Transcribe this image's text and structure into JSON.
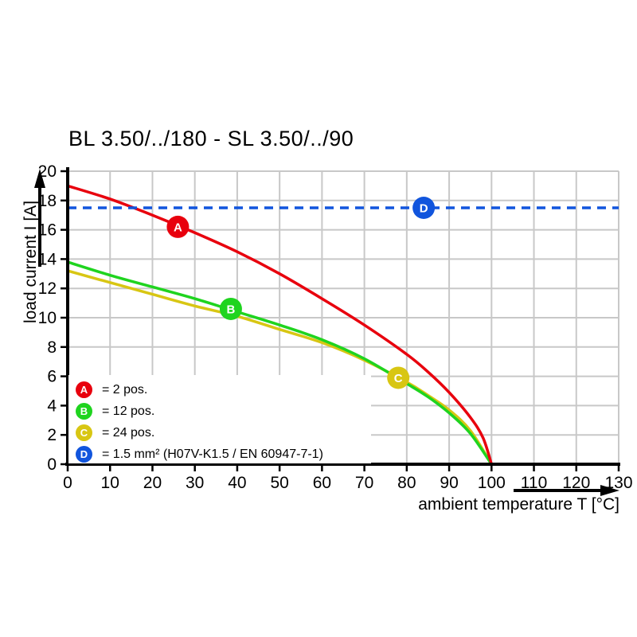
{
  "title": "BL 3.50/../180 - SL 3.50/../90",
  "colors": {
    "red": "#e8000d",
    "green": "#1fd41f",
    "yellow": "#d8c613",
    "blue": "#1155dd",
    "grid": "#c8c8c8",
    "axis": "#000000",
    "text": "#000000",
    "background": "#ffffff"
  },
  "axes": {
    "x": {
      "label": "ambient temperature T [°C]",
      "min": 0,
      "max": 130,
      "ticks": [
        0,
        10,
        20,
        30,
        40,
        50,
        60,
        70,
        80,
        90,
        100,
        110,
        120,
        130
      ]
    },
    "y": {
      "label": "load current I [A]",
      "min": 0,
      "max": 20,
      "ticks": [
        0,
        2,
        4,
        6,
        8,
        10,
        12,
        14,
        16,
        18,
        20
      ]
    }
  },
  "legend": {
    "items": [
      {
        "id": "A",
        "color_key": "red",
        "label": "= 2 pos."
      },
      {
        "id": "B",
        "color_key": "green",
        "label": "= 12 pos."
      },
      {
        "id": "C",
        "color_key": "yellow",
        "label": "= 24 pos."
      },
      {
        "id": "D",
        "color_key": "blue",
        "label": "= 1.5 mm² (H07V-K1.5 / EN 60947-7-1)"
      }
    ]
  },
  "markers": [
    {
      "id": "A",
      "color_key": "red",
      "t": 26,
      "i": 16.2
    },
    {
      "id": "B",
      "color_key": "green",
      "t": 38.5,
      "i": 10.6
    },
    {
      "id": "C",
      "color_key": "yellow",
      "t": 78,
      "i": 5.9
    },
    {
      "id": "D",
      "color_key": "blue",
      "t": 84,
      "i": 17.5
    }
  ],
  "chart_data": {
    "type": "line",
    "title": "BL 3.50/../180 - SL 3.50/../90",
    "xlabel": "ambient temperature T [°C]",
    "ylabel": "load current I [A]",
    "xlim": [
      0,
      130
    ],
    "ylim": [
      0,
      20
    ],
    "grid": true,
    "legend_position": "bottom-left-inside",
    "series": [
      {
        "name": "A = 2 pos.",
        "color_key": "red",
        "style": "solid",
        "points": [
          [
            0,
            19.0
          ],
          [
            10,
            18.1
          ],
          [
            20,
            17.0
          ],
          [
            30,
            15.8
          ],
          [
            40,
            14.5
          ],
          [
            50,
            13.0
          ],
          [
            60,
            11.3
          ],
          [
            70,
            9.5
          ],
          [
            80,
            7.5
          ],
          [
            85,
            6.3
          ],
          [
            90,
            4.9
          ],
          [
            95,
            3.2
          ],
          [
            98,
            1.8
          ],
          [
            100,
            0
          ]
        ]
      },
      {
        "name": "B = 12 pos.",
        "color_key": "green",
        "style": "solid",
        "points": [
          [
            0,
            13.8
          ],
          [
            10,
            12.9
          ],
          [
            20,
            12.1
          ],
          [
            30,
            11.3
          ],
          [
            40,
            10.4
          ],
          [
            50,
            9.5
          ],
          [
            60,
            8.5
          ],
          [
            70,
            7.2
          ],
          [
            80,
            5.5
          ],
          [
            85,
            4.6
          ],
          [
            90,
            3.5
          ],
          [
            95,
            2.1
          ],
          [
            100,
            0
          ]
        ]
      },
      {
        "name": "C = 24 pos.",
        "color_key": "yellow",
        "style": "solid",
        "points": [
          [
            0,
            13.2
          ],
          [
            10,
            12.4
          ],
          [
            20,
            11.6
          ],
          [
            30,
            10.8
          ],
          [
            40,
            10.1
          ],
          [
            50,
            9.2
          ],
          [
            60,
            8.3
          ],
          [
            70,
            7.1
          ],
          [
            80,
            5.6
          ],
          [
            85,
            4.7
          ],
          [
            90,
            3.7
          ],
          [
            95,
            2.3
          ],
          [
            100,
            0
          ]
        ]
      },
      {
        "name": "D = 1.5 mm² (H07V-K1.5 / EN 60947-7-1)",
        "color_key": "blue",
        "style": "dashed",
        "points": [
          [
            0,
            17.5
          ],
          [
            130,
            17.5
          ]
        ]
      }
    ]
  }
}
